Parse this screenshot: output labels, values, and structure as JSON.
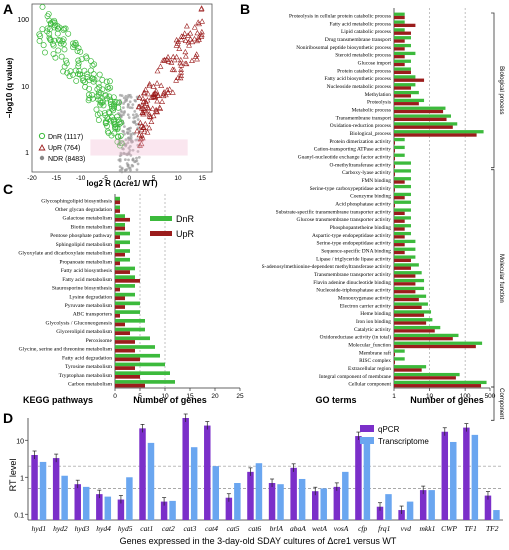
{
  "panels": {
    "A": {
      "letter": "A",
      "ylabel": "−log10 (q value)",
      "xlabel": "log2 R (Δcre1/ WT)",
      "xticks": [
        "-20",
        "-15",
        "-10",
        "-5",
        "0",
        "5",
        "10",
        "15"
      ],
      "yticks": [
        "1",
        "10",
        "100"
      ],
      "legend": [
        {
          "label": "DnR (1117)",
          "color": "#3cba3c",
          "symbol": "circle"
        },
        {
          "label": "UpR (764)",
          "color": "#9b1c1c",
          "symbol": "triangle"
        },
        {
          "label": "NDR (8483)",
          "color": "#888888",
          "symbol": "dot"
        }
      ]
    },
    "B": {
      "letter": "B",
      "xlabel_terms": "GO terms",
      "xlabel_genes": "Number of genes",
      "xticks": [
        "1",
        "10",
        "100",
        "500"
      ],
      "categories": [
        {
          "label": "Biological process",
          "from": 0,
          "to": 19
        },
        {
          "label": "Molecular function",
          "from": 20,
          "to": 51
        },
        {
          "label": "Component",
          "from": 52,
          "to": 56
        }
      ],
      "terms": [
        {
          "label": "Proteolysis in cellular protein catabolic process",
          "dn": 2,
          "up": 2
        },
        {
          "label": "Fatty acid metabolic process",
          "dn": 2,
          "up": 4
        },
        {
          "label": "Lipid catabolic process",
          "dn": 2,
          "up": 3
        },
        {
          "label": "Drug transmembrane transport",
          "dn": 3,
          "up": 2
        },
        {
          "label": "Noniribosomal peptide biosynthetic process",
          "dn": 3,
          "up": 2
        },
        {
          "label": "Steroid metabolic process",
          "dn": 4,
          "up": 2
        },
        {
          "label": "Glucose import",
          "dn": 3,
          "up": 2
        },
        {
          "label": "Protein catabolic process",
          "dn": 3,
          "up": 3
        },
        {
          "label": "Fatty acid biosynthetic process",
          "dn": 4,
          "up": 7
        },
        {
          "label": "Nucleoside metabolic process",
          "dn": 4,
          "up": 3
        },
        {
          "label": "Methylation",
          "dn": 5,
          "up": 3
        },
        {
          "label": "Proteolysis",
          "dn": 7,
          "up": 5
        },
        {
          "label": "Metabolic process",
          "dn": 28,
          "up": 24
        },
        {
          "label": "Transmembrane transport",
          "dn": 40,
          "up": 30
        },
        {
          "label": "Oxidation-reduction process",
          "dn": 60,
          "up": 45
        },
        {
          "label": "Biological_process",
          "dn": 330,
          "up": 210
        },
        {
          "label": "Protein dimerization activity",
          "dn": 2,
          "up": 1
        },
        {
          "label": "Cation-transporting ATPase activity",
          "dn": 2,
          "up": 1
        },
        {
          "label": "Guanyl-nucleotide exchange factor activity",
          "dn": 2,
          "up": 1
        },
        {
          "label": "O-methyltransferase activity",
          "dn": 3,
          "up": 1
        },
        {
          "label": "Carboxy-lyase activity",
          "dn": 3,
          "up": 1
        },
        {
          "label": "FMN binding",
          "dn": 3,
          "up": 2
        },
        {
          "label": "Serine-type carboxypeptidase activity",
          "dn": 3,
          "up": 1
        },
        {
          "label": "Coenzyme binding",
          "dn": 3,
          "up": 2
        },
        {
          "label": "Acid phosphatase activity",
          "dn": 3,
          "up": 1
        },
        {
          "label": "Substrate-specific transmembrane transporter activity",
          "dn": 3,
          "up": 2
        },
        {
          "label": "Glucose transmembrane transporter activity",
          "dn": 3,
          "up": 2
        },
        {
          "label": "Phosphopantetheine binding",
          "dn": 3,
          "up": 2
        },
        {
          "label": "Aspartic-type endopeptidase activity",
          "dn": 3,
          "up": 2
        },
        {
          "label": "Serine-type endopeptidase activity",
          "dn": 4,
          "up": 2
        },
        {
          "label": "Sequence-specific DNA binding",
          "dn": 4,
          "up": 2
        },
        {
          "label": "Lipase / triglyceride lipase activity",
          "dn": 4,
          "up": 3
        },
        {
          "label": "S-adenosylmethionine-dependent methyltransferase activity",
          "dn": 5,
          "up": 3
        },
        {
          "label": "Transmembrane transporter activity",
          "dn": 6,
          "up": 4
        },
        {
          "label": "Flavin adenine dinucleotide binding",
          "dn": 7,
          "up": 4
        },
        {
          "label": "Nucleoside-triphosphatase activity",
          "dn": 7,
          "up": 4
        },
        {
          "label": "Monooxygenase activity",
          "dn": 8,
          "up": 5
        },
        {
          "label": "Electron carrier activity",
          "dn": 9,
          "up": 6
        },
        {
          "label": "Heme binding",
          "dn": 11,
          "up": 7
        },
        {
          "label": "Iron ion binding",
          "dn": 12,
          "up": 8
        },
        {
          "label": "Catalytic activity",
          "dn": 20,
          "up": 14
        },
        {
          "label": "Oxidoreductase activity (in total)",
          "dn": 65,
          "up": 45
        },
        {
          "label": "Molecular_function",
          "dn": 300,
          "up": 200
        },
        {
          "label": "Membrane raft",
          "dn": 2,
          "up": 1
        },
        {
          "label": "RISC complex",
          "dn": 2,
          "up": 1
        },
        {
          "label": "Extracellular region",
          "dn": 8,
          "up": 6
        },
        {
          "label": "Integral component of membrane",
          "dn": 70,
          "up": 55
        },
        {
          "label": "Cellular component",
          "dn": 400,
          "up": 280
        }
      ]
    },
    "C": {
      "letter": "C",
      "xlabel_paths": "KEGG pathways",
      "xlabel_genes": "Number of genes",
      "xticks": [
        "0",
        "5",
        "10",
        "15",
        "20",
        "25"
      ],
      "legend": [
        {
          "label": "DnR",
          "color": "#3cba3c"
        },
        {
          "label": "UpR",
          "color": "#9b1c1c"
        }
      ],
      "pathways": [
        {
          "label": "Glycosphingolipid biosynthesis",
          "dn": 1,
          "up": 1
        },
        {
          "label": "Other glycan degradation",
          "dn": 1,
          "up": 1
        },
        {
          "label": "Galactose metabolism",
          "dn": 2,
          "up": 3
        },
        {
          "label": "Biotin metabolism",
          "dn": 2,
          "up": 2
        },
        {
          "label": "Pentose phosphate pathway",
          "dn": 3,
          "up": 1
        },
        {
          "label": "Sphingolipid metabolism",
          "dn": 3,
          "up": 1
        },
        {
          "label": "Glyoxylate and dicarboxylate metabolism",
          "dn": 3,
          "up": 2
        },
        {
          "label": "Propanoate metabolism",
          "dn": 3,
          "up": 1
        },
        {
          "label": "Fatty acid biosynthesis",
          "dn": 4,
          "up": 3
        },
        {
          "label": "Fatty acid metabolism",
          "dn": 4,
          "up": 5
        },
        {
          "label": "Staurosporine biosynthesis",
          "dn": 4,
          "up": 1
        },
        {
          "label": "Lysine degradation",
          "dn": 4,
          "up": 2
        },
        {
          "label": "Pyruvate metabolism",
          "dn": 5,
          "up": 2
        },
        {
          "label": "ABC transporters",
          "dn": 5,
          "up": 1
        },
        {
          "label": "Glycolysis / Gluconeogenesis",
          "dn": 6,
          "up": 2
        },
        {
          "label": "Glycerolipid metabolism",
          "dn": 6,
          "up": 3
        },
        {
          "label": "Peroxisome",
          "dn": 7,
          "up": 4
        },
        {
          "label": "Glycine, serine and threonine metabolism",
          "dn": 8,
          "up": 4
        },
        {
          "label": "Fatty acid degradation",
          "dn": 9,
          "up": 5
        },
        {
          "label": "Tyrosine metabolism",
          "dn": 10,
          "up": 4
        },
        {
          "label": "Tryptophan metabolism",
          "dn": 11,
          "up": 5
        },
        {
          "label": "Carbon metabolism",
          "dn": 12,
          "up": 6
        }
      ]
    },
    "D": {
      "letter": "D",
      "ylabel": "RT level",
      "xlabel": "Genes expressed in the 3-day-old SDAY cultures of Δcre1 versus WT",
      "yticks": [
        "0.1",
        "1",
        "10"
      ],
      "legend": [
        {
          "label": "qPCR",
          "color": "#7b2fc9"
        },
        {
          "label": "Transcriptome",
          "color": "#6aa6f0"
        }
      ]
    }
  },
  "chart_data": [
    {
      "type": "scatter",
      "title": "",
      "xlabel": "log2 R (Δcre1/ WT)",
      "ylabel": "−log10 (q value)",
      "xlim": [
        -20,
        17
      ],
      "ylim": [
        0.5,
        200
      ],
      "yscale": "log",
      "series": [
        {
          "name": "DnR (1117)",
          "count": 1117
        },
        {
          "name": "UpR (764)",
          "count": 764
        },
        {
          "name": "NDR (8483)",
          "count": 8483
        }
      ]
    },
    {
      "type": "bar",
      "orientation": "horizontal",
      "xlabel": "Number of genes",
      "xscale": "log",
      "xlim": [
        1,
        500
      ],
      "series": [
        {
          "name": "DnR"
        },
        {
          "name": "UpR"
        }
      ],
      "source": "panels.B.terms"
    },
    {
      "type": "bar",
      "orientation": "horizontal",
      "xlabel": "Number of genes",
      "xlim": [
        0,
        25
      ],
      "series": [
        {
          "name": "DnR"
        },
        {
          "name": "UpR"
        }
      ],
      "source": "panels.C.pathways"
    },
    {
      "type": "bar",
      "xlabel": "Genes expressed in the 3-day-old SDAY cultures of Δcre1 versus WT",
      "ylabel": "RT level",
      "yscale": "log",
      "ylim": [
        0.07,
        40
      ],
      "categories": [
        "hyd1",
        "hyd2",
        "hyd3",
        "hyd4",
        "hyd5",
        "cat1",
        "cat2",
        "cat3",
        "cat4",
        "cat5",
        "cat6",
        "brlA",
        "abaA",
        "wetA",
        "vosA",
        "cfp",
        "frq1",
        "vvd",
        "mkk1",
        "CWP",
        "TF1",
        "TF2"
      ],
      "series": [
        {
          "name": "qPCR",
          "values": [
            4.0,
            3.3,
            0.65,
            0.35,
            0.25,
            21,
            0.22,
            40,
            25,
            0.28,
            1.4,
            0.7,
            1.8,
            0.42,
            0.55,
            13,
            0.16,
            0.13,
            0.45,
            17,
            22,
            0.32
          ]
        },
        {
          "name": "Transcriptome",
          "values": [
            2.6,
            1.1,
            0.55,
            0.3,
            1.0,
            8.5,
            0.23,
            6.5,
            2.0,
            0.7,
            2.4,
            0.65,
            0.9,
            0.5,
            1.4,
            11,
            0.35,
            0.22,
            0.45,
            9.0,
            14,
            0.13
          ]
        }
      ]
    }
  ]
}
